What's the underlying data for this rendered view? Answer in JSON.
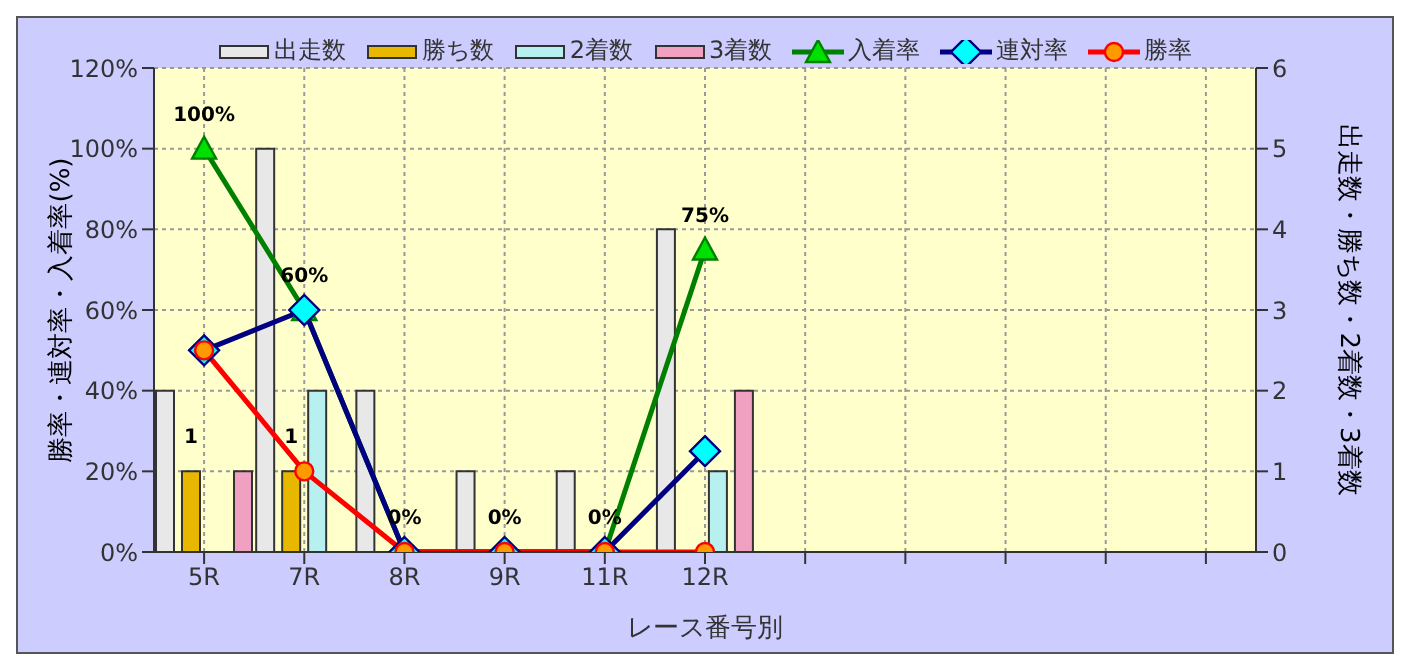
{
  "chart_data": {
    "type": "bar",
    "xlabel": "レース番号別",
    "ylabel": "勝率・連対率・入着率(%)",
    "y2label": "出走数・勝ち数・2着数・3着数",
    "categories": [
      "5R",
      "7R",
      "8R",
      "9R",
      "11R",
      "12R",
      null,
      null,
      null,
      null,
      null
    ],
    "series": [
      {
        "name": "出走数",
        "type": "bar",
        "axis": "y2",
        "color": "#e8e8e8",
        "values": [
          2,
          5,
          2,
          1,
          1,
          4,
          null,
          null,
          null,
          null,
          null
        ]
      },
      {
        "name": "勝ち数",
        "type": "bar",
        "axis": "y2",
        "color": "#e8b800",
        "values": [
          1,
          1,
          0,
          0,
          0,
          0,
          null,
          null,
          null,
          null,
          null
        ],
        "value_labels": [
          "1",
          "1",
          null,
          null,
          null,
          null,
          null,
          null,
          null,
          null,
          null
        ]
      },
      {
        "name": "2着数",
        "type": "bar",
        "axis": "y2",
        "color": "#b8f0f0",
        "values": [
          0,
          2,
          0,
          0,
          0,
          1,
          null,
          null,
          null,
          null,
          null
        ]
      },
      {
        "name": "3着数",
        "type": "bar",
        "axis": "y2",
        "color": "#f0a0c0",
        "values": [
          1,
          0,
          0,
          0,
          0,
          2,
          null,
          null,
          null,
          null,
          null
        ]
      },
      {
        "name": "入着率",
        "type": "line",
        "color": "#008000",
        "marker": "triangle",
        "values": [
          100,
          60,
          0,
          0,
          0,
          75,
          null,
          null,
          null,
          null,
          null
        ],
        "value_labels": [
          "100%",
          "60%",
          "0%",
          "0%",
          "0%",
          "75%",
          null,
          null,
          null,
          null,
          null
        ]
      },
      {
        "name": "連対率",
        "type": "line",
        "color": "#000080",
        "marker": "diamond",
        "values": [
          50,
          60,
          0,
          0,
          0,
          25,
          null,
          null,
          null,
          null,
          null
        ]
      },
      {
        "name": "勝率",
        "type": "line",
        "color": "#ff0000",
        "marker": "circle",
        "values": [
          50,
          20,
          0,
          0,
          0,
          0,
          null,
          null,
          null,
          null,
          null
        ]
      }
    ],
    "ylim": [
      0,
      120
    ],
    "yticks": [
      {
        "value": 0,
        "label": "0%"
      },
      {
        "value": 20,
        "label": "20%"
      },
      {
        "value": 40,
        "label": "40%"
      },
      {
        "value": 60,
        "label": "60%"
      },
      {
        "value": 80,
        "label": "80%"
      },
      {
        "value": 100,
        "label": "100%"
      },
      {
        "value": 120,
        "label": "120%"
      }
    ],
    "y2lim": [
      0,
      6
    ],
    "y2ticks": [
      0,
      1,
      2,
      3,
      4,
      5,
      6
    ],
    "grid": true,
    "legend": "top"
  }
}
